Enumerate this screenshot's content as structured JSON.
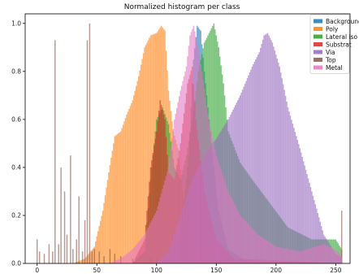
{
  "chart_data": {
    "type": "bar",
    "title": "Normalized histogram per class",
    "xlabel": "",
    "ylabel": "",
    "xlim": [
      -10,
      262
    ],
    "ylim": [
      0,
      1.04
    ],
    "x_ticks": [
      0,
      50,
      100,
      150,
      200,
      250
    ],
    "y_ticks": [
      0.0,
      0.2,
      0.4,
      0.6,
      0.8,
      1.0
    ],
    "grid": false,
    "legend_position": "top-right",
    "bins": 256,
    "series": [
      {
        "name": "Background",
        "color": "#1f77b4",
        "points": [
          [
            0,
            0
          ],
          [
            100,
            0
          ],
          [
            110,
            0.02
          ],
          [
            120,
            0.12
          ],
          [
            127,
            0.45
          ],
          [
            131,
            0.85
          ],
          [
            134,
            0.99
          ],
          [
            137,
            0.97
          ],
          [
            140,
            0.8
          ],
          [
            145,
            0.55
          ],
          [
            152,
            0.22
          ],
          [
            160,
            0.06
          ],
          [
            175,
            0.01
          ],
          [
            256,
            0
          ]
        ]
      },
      {
        "name": "Poly",
        "color": "#ff7f0e",
        "points": [
          [
            0,
            0
          ],
          [
            30,
            0
          ],
          [
            40,
            0.02
          ],
          [
            48,
            0.07
          ],
          [
            55,
            0.22
          ],
          [
            60,
            0.38
          ],
          [
            65,
            0.53
          ],
          [
            70,
            0.55
          ],
          [
            75,
            0.62
          ],
          [
            80,
            0.68
          ],
          [
            85,
            0.78
          ],
          [
            90,
            0.9
          ],
          [
            95,
            0.95
          ],
          [
            100,
            0.96
          ],
          [
            104,
            0.99
          ],
          [
            107,
            0.97
          ],
          [
            110,
            0.72
          ],
          [
            114,
            0.55
          ],
          [
            118,
            0.48
          ],
          [
            122,
            0.3
          ],
          [
            128,
            0.15
          ],
          [
            135,
            0.06
          ],
          [
            150,
            0.01
          ],
          [
            256,
            0
          ]
        ]
      },
      {
        "name": "Lateral iso",
        "color": "#2ca02c",
        "points": [
          [
            0,
            0
          ],
          [
            80,
            0
          ],
          [
            90,
            0.05
          ],
          [
            95,
            0.35
          ],
          [
            100,
            0.6
          ],
          [
            105,
            0.65
          ],
          [
            110,
            0.58
          ],
          [
            115,
            0.4
          ],
          [
            120,
            0.35
          ],
          [
            125,
            0.45
          ],
          [
            130,
            0.6
          ],
          [
            135,
            0.8
          ],
          [
            140,
            0.92
          ],
          [
            145,
            0.97
          ],
          [
            148,
            1.0
          ],
          [
            152,
            0.9
          ],
          [
            156,
            0.75
          ],
          [
            160,
            0.55
          ],
          [
            170,
            0.42
          ],
          [
            180,
            0.35
          ],
          [
            195,
            0.25
          ],
          [
            210,
            0.15
          ],
          [
            230,
            0.1
          ],
          [
            250,
            0.1
          ],
          [
            256,
            0.05
          ]
        ]
      },
      {
        "name": "Substrat",
        "color": "#d62728",
        "points": [
          [
            0,
            0
          ],
          [
            80,
            0
          ],
          [
            90,
            0.1
          ],
          [
            95,
            0.4
          ],
          [
            100,
            0.55
          ],
          [
            103,
            0.68
          ],
          [
            107,
            0.6
          ],
          [
            110,
            0.38
          ],
          [
            115,
            0.35
          ],
          [
            120,
            0.5
          ],
          [
            126,
            0.75
          ],
          [
            130,
            0.82
          ],
          [
            133,
            0.6
          ],
          [
            140,
            0.3
          ],
          [
            150,
            0.1
          ],
          [
            165,
            0.02
          ],
          [
            256,
            0
          ]
        ]
      },
      {
        "name": "Via",
        "color": "#9467bd",
        "points": [
          [
            0,
            0
          ],
          [
            100,
            0
          ],
          [
            110,
            0.05
          ],
          [
            120,
            0.2
          ],
          [
            130,
            0.35
          ],
          [
            140,
            0.45
          ],
          [
            150,
            0.52
          ],
          [
            160,
            0.6
          ],
          [
            166,
            0.66
          ],
          [
            170,
            0.7
          ],
          [
            175,
            0.76
          ],
          [
            180,
            0.82
          ],
          [
            186,
            0.88
          ],
          [
            190,
            0.95
          ],
          [
            193,
            0.96
          ],
          [
            197,
            0.92
          ],
          [
            203,
            0.82
          ],
          [
            210,
            0.65
          ],
          [
            220,
            0.48
          ],
          [
            230,
            0.3
          ],
          [
            240,
            0.12
          ],
          [
            250,
            0.04
          ],
          [
            256,
            0.02
          ]
        ]
      },
      {
        "name": "Top",
        "color": "#8c564b",
        "points": [
          [
            0,
            0
          ],
          [
            256,
            0
          ]
        ],
        "spikes": [
          [
            0,
            0.1
          ],
          [
            2,
            0.05
          ],
          [
            6,
            0.04
          ],
          [
            10,
            0.08
          ],
          [
            13,
            0.05
          ],
          [
            15,
            0.93
          ],
          [
            18,
            0.08
          ],
          [
            20,
            0.4
          ],
          [
            23,
            0.3
          ],
          [
            25,
            0.12
          ],
          [
            28,
            0.45
          ],
          [
            30,
            0.06
          ],
          [
            33,
            0.1
          ],
          [
            35,
            0.28
          ],
          [
            38,
            0.05
          ],
          [
            40,
            0.18
          ],
          [
            42,
            0.93
          ],
          [
            44,
            1.0
          ],
          [
            46,
            0.05
          ],
          [
            48,
            0.06
          ],
          [
            52,
            0.05
          ],
          [
            56,
            0.03
          ],
          [
            61,
            0.06
          ],
          [
            65,
            0.04
          ],
          [
            70,
            0.03
          ],
          [
            80,
            0.02
          ],
          [
            90,
            0.02
          ],
          [
            95,
            0.03
          ],
          [
            100,
            0.03
          ],
          [
            255,
            0.22
          ]
        ]
      },
      {
        "name": "Metal",
        "color": "#e377c2",
        "points": [
          [
            0,
            0
          ],
          [
            60,
            0
          ],
          [
            70,
            0.02
          ],
          [
            80,
            0.06
          ],
          [
            90,
            0.12
          ],
          [
            100,
            0.22
          ],
          [
            110,
            0.4
          ],
          [
            115,
            0.6
          ],
          [
            120,
            0.72
          ],
          [
            125,
            0.82
          ],
          [
            128,
            0.95
          ],
          [
            131,
            0.99
          ],
          [
            134,
            0.92
          ],
          [
            138,
            0.8
          ],
          [
            143,
            0.62
          ],
          [
            150,
            0.45
          ],
          [
            160,
            0.3
          ],
          [
            170,
            0.2
          ],
          [
            185,
            0.12
          ],
          [
            200,
            0.07
          ],
          [
            220,
            0.05
          ],
          [
            240,
            0.08
          ],
          [
            252,
            0.05
          ],
          [
            256,
            0.02
          ]
        ]
      }
    ]
  }
}
